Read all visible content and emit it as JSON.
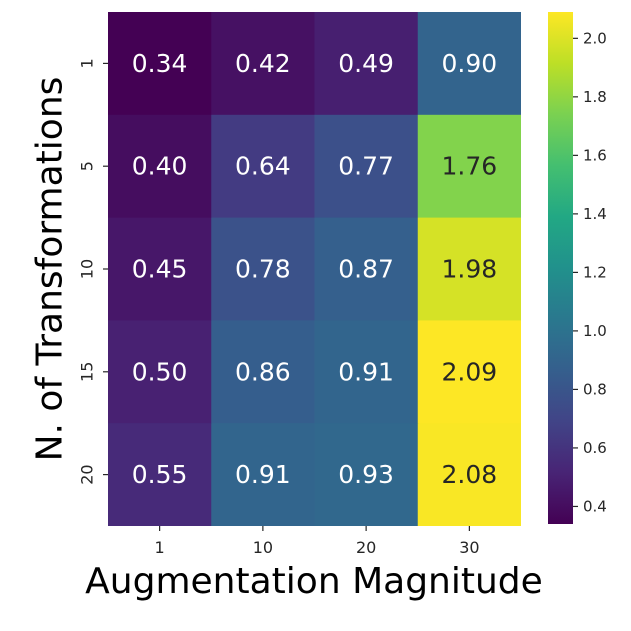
{
  "chart_data": {
    "type": "heatmap",
    "xlabel": "Augmentation Magnitude",
    "ylabel": "N. of Transformations",
    "x_categories": [
      "1",
      "10",
      "20",
      "30"
    ],
    "y_categories": [
      "1",
      "5",
      "10",
      "15",
      "20"
    ],
    "values": [
      [
        0.34,
        0.42,
        0.49,
        0.9
      ],
      [
        0.4,
        0.64,
        0.77,
        1.76
      ],
      [
        0.45,
        0.78,
        0.87,
        1.98
      ],
      [
        0.5,
        0.86,
        0.91,
        2.09
      ],
      [
        0.55,
        0.91,
        0.93,
        2.08
      ]
    ],
    "colormap": "viridis",
    "colormap_stops": [
      "#440154",
      "#482475",
      "#414487",
      "#355f8d",
      "#2a788e",
      "#21918c",
      "#22a884",
      "#44bf70",
      "#7ad151",
      "#bddf26",
      "#fde725"
    ],
    "color_range": [
      0.34,
      2.09
    ],
    "colorbar_ticks": [
      "2.0",
      "1.8",
      "1.6",
      "1.4",
      "1.2",
      "1.0",
      "0.8",
      "0.6",
      "0.4"
    ],
    "colorbar_position": "right",
    "annotation_colors": {
      "on_dark": "#ffffff",
      "on_light": "#262626"
    },
    "grid": false
  }
}
